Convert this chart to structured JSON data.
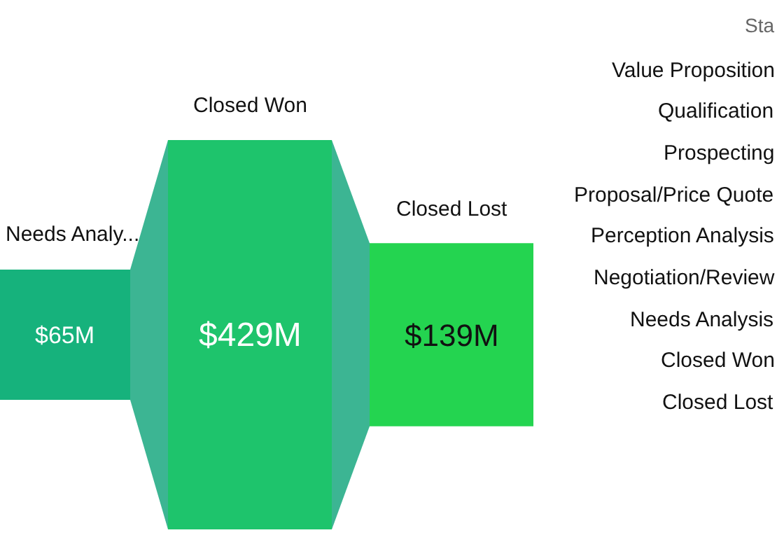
{
  "chart_data": {
    "type": "other",
    "categories": [
      "Needs Analy...",
      "Closed Won",
      "Closed Lost"
    ],
    "values": [
      65,
      429,
      139
    ],
    "value_labels": [
      "$65M",
      "$429M",
      "$139M"
    ],
    "colors": [
      "#16b27c",
      "#1ec46c",
      "#24d450"
    ],
    "legend_title": "Sta",
    "annotations": [
      "Value Proposition",
      "Qualification",
      "Prospecting",
      "Proposal/Price Quote",
      "Perception Analysis",
      "Negotiation/Review",
      "Needs Analysis",
      "Closed Won",
      "Closed Lost"
    ]
  }
}
